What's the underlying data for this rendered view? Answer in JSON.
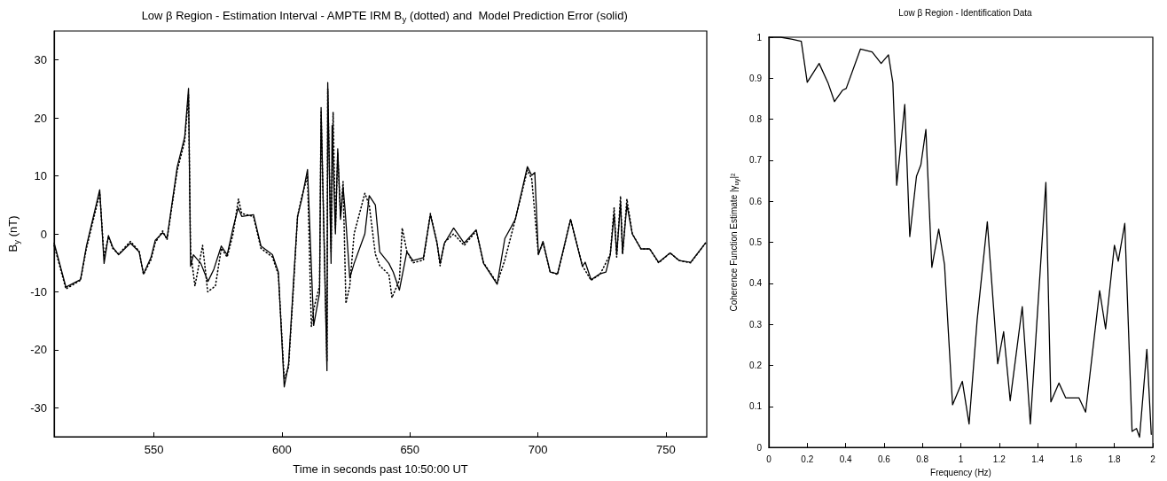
{
  "chart_data": [
    {
      "type": "line",
      "title": "Low β Region - Estimation Interval - AMPTE IRM B$_{y}$ (dotted) and  Model Prediction Error (solid)",
      "xlabel": "Time in seconds past 10:50:00 UT",
      "ylabel": "B$_{y}$ (nT)",
      "xlim": [
        511,
        766
      ],
      "xticks": [
        550,
        600,
        650,
        700,
        750
      ],
      "ylim": [
        -35,
        35
      ],
      "yticks": [
        -30,
        -20,
        -10,
        0,
        10,
        20,
        30
      ],
      "series": [
        {
          "color": "#000000",
          "line_style": "dotted",
          "x": [
            511,
            515.6,
            521.3,
            523.6,
            528.8,
            530.5,
            532.2,
            533.9,
            536.2,
            540.8,
            544.2,
            545.9,
            548.8,
            550.5,
            553.4,
            555.1,
            559.1,
            562,
            563.5,
            564.3,
            566,
            569,
            571,
            574,
            576.3,
            578.6,
            580.9,
            583,
            584.3,
            588.9,
            591.8,
            596.3,
            598.6,
            600.9,
            602.6,
            604.4,
            606.1,
            607.8,
            610,
            611.5,
            612.4,
            614.7,
            615.3,
            617.6,
            617.9,
            619.2,
            620,
            620.9,
            621.8,
            622.9,
            623.9,
            625,
            626.5,
            628.2,
            632.4,
            634.1,
            636.5,
            638.2,
            641.8,
            643,
            645.9,
            647,
            648.8,
            651.2,
            655.3,
            658,
            660.6,
            661.8,
            663.5,
            667.1,
            671.2,
            675.9,
            678.8,
            684.1,
            687.1,
            691.2,
            695.9,
            697.6,
            700.2,
            702,
            704.8,
            707.7,
            712.8,
            717.4,
            720.8,
            724.3,
            728.3,
            729.8,
            730.8,
            732.3,
            733.1,
            734.8,
            736.9,
            740.3,
            743.7,
            747.2,
            751.7,
            755.2,
            759.7,
            765.5
          ],
          "values": [
            -2,
            -9.5,
            -8,
            -2.5,
            7,
            -4,
            -0.5,
            -2.5,
            -3.5,
            -1.3,
            -3,
            -7,
            -4.5,
            -1.5,
            0.5,
            -1,
            11,
            16,
            24,
            -3,
            -9,
            -2,
            -10,
            -9,
            -2.5,
            -4,
            0,
            6,
            3.5,
            3,
            -2.5,
            -4,
            -7,
            -25,
            -23,
            -10,
            3,
            6.5,
            10,
            -16,
            -13,
            -9,
            21,
            -22,
            25,
            -3,
            21,
            1,
            14,
            3,
            9,
            -12,
            -9,
            0,
            7,
            5,
            -3.5,
            -5.5,
            -7,
            -11,
            -8,
            1,
            -3,
            -5,
            -4.5,
            3.5,
            -1.5,
            -5.5,
            -1.5,
            0,
            -2,
            0.5,
            -5,
            -8.5,
            -4.5,
            2.5,
            11,
            9.5,
            -3.5,
            -1.5,
            -6.5,
            -7,
            2.5,
            -5.5,
            -8,
            -7,
            -3.5,
            4.5,
            -4,
            6.5,
            -3.5,
            6,
            0,
            -2.6,
            -2.6,
            -5,
            -3.3,
            -4.6,
            -5,
            -1.6
          ]
        },
        {
          "color": "#000000",
          "line_style": "solid",
          "x": [
            511,
            515.6,
            521.3,
            523.6,
            528.8,
            530.5,
            532.2,
            533.9,
            536.2,
            540.8,
            544.2,
            545.9,
            548.8,
            550.5,
            553.4,
            555.1,
            559.1,
            562,
            563.5,
            564.3,
            565.4,
            568.3,
            571.1,
            573.4,
            576.3,
            578.6,
            580.9,
            582.9,
            584.3,
            588.9,
            591.8,
            596.3,
            598.6,
            600.9,
            602.6,
            604.4,
            606.1,
            607.8,
            610,
            612.4,
            614.7,
            615.3,
            617.6,
            617.9,
            619.2,
            619.6,
            620.9,
            621.8,
            622.9,
            623.9,
            624.7,
            626.5,
            628.2,
            632.4,
            634.1,
            636.5,
            638.2,
            641.8,
            643.5,
            645.9,
            648.8,
            651.2,
            655.3,
            658,
            660.6,
            661.8,
            663.5,
            667.1,
            671.2,
            675.9,
            678.8,
            684.1,
            687.1,
            691.2,
            695.9,
            697.6,
            698.8,
            700.2,
            702,
            704.8,
            707.7,
            712.8,
            717.4,
            718.5,
            720.8,
            724.3,
            726.6,
            728.3,
            729.8,
            730.8,
            732.3,
            733.1,
            734.8,
            736.9,
            740.3,
            743.7,
            747.2,
            751.7,
            755.2,
            759.7,
            765.5
          ],
          "values": [
            -1.6,
            -9.2,
            -7.9,
            -2.1,
            7.6,
            -5.1,
            -0.3,
            -2.3,
            -3.6,
            -1.6,
            -3.1,
            -6.9,
            -4.1,
            -1.1,
            0.2,
            -0.8,
            11.6,
            16.7,
            25.1,
            -5.6,
            -3.6,
            -5.1,
            -8.2,
            -6.1,
            -2.1,
            -3.6,
            1,
            4.5,
            3,
            3.3,
            -2.1,
            -3.6,
            -6.6,
            -26.4,
            -22.4,
            -9.2,
            3,
            6.1,
            11.1,
            -15.8,
            -10.2,
            21.8,
            -23.6,
            26.1,
            -5.1,
            18.7,
            0,
            14.7,
            2.5,
            8.1,
            4,
            -7.6,
            -5.1,
            0,
            6.6,
            5,
            -3.1,
            -5.1,
            -6.6,
            -9.7,
            -3.1,
            -4.6,
            -4.1,
            3.3,
            -1.6,
            -5.1,
            -1.6,
            1,
            -1.6,
            0.7,
            -5.1,
            -8.7,
            -0.8,
            2.5,
            11.6,
            10.1,
            10.6,
            -3.6,
            -1.3,
            -6.6,
            -6.9,
            2.5,
            -5.6,
            -4.9,
            -7.9,
            -6.9,
            -6.6,
            -3.6,
            3.5,
            -3.6,
            5.3,
            -3.3,
            5,
            0,
            -2.6,
            -2.6,
            -4.9,
            -3.3,
            -4.6,
            -4.9,
            -1.6
          ]
        }
      ]
    },
    {
      "type": "line",
      "title": "Low β Region - Identification Data",
      "xlabel": "Frequency (Hz)",
      "ylabel": "Coherence Function Estimate |γ$_{uy}$|²",
      "xlim": [
        0,
        2
      ],
      "xticks": [
        0,
        0.2,
        0.4,
        0.6,
        0.8,
        1,
        1.2,
        1.4,
        1.6,
        1.8,
        2
      ],
      "ylim": [
        0,
        1
      ],
      "yticks": [
        0,
        0.1,
        0.2,
        0.3,
        0.4,
        0.5,
        0.6,
        0.7,
        0.8,
        0.9,
        1
      ],
      "series": [
        {
          "color": "#000000",
          "line_style": "solid",
          "x": [
            0,
            0.062,
            0.123,
            0.169,
            0.2,
            0.262,
            0.308,
            0.342,
            0.385,
            0.403,
            0.477,
            0.538,
            0.585,
            0.623,
            0.646,
            0.666,
            0.708,
            0.734,
            0.769,
            0.792,
            0.818,
            0.849,
            0.885,
            0.915,
            0.957,
            1.008,
            1.043,
            1.085,
            1.138,
            1.192,
            1.223,
            1.257,
            1.32,
            1.362,
            1.443,
            1.469,
            1.511,
            1.546,
            1.615,
            1.65,
            1.723,
            1.754,
            1.8,
            1.82,
            1.854,
            1.892,
            1.915,
            1.931,
            1.969,
            1.992
          ],
          "values": [
            1,
            1,
            0.995,
            0.99,
            0.89,
            0.936,
            0.889,
            0.843,
            0.871,
            0.875,
            0.971,
            0.964,
            0.936,
            0.957,
            0.889,
            0.639,
            0.836,
            0.514,
            0.661,
            0.689,
            0.775,
            0.439,
            0.532,
            0.446,
            0.104,
            0.161,
            0.057,
            0.311,
            0.55,
            0.204,
            0.282,
            0.114,
            0.343,
            0.057,
            0.646,
            0.111,
            0.157,
            0.121,
            0.121,
            0.086,
            0.382,
            0.289,
            0.493,
            0.454,
            0.546,
            0.039,
            0.046,
            0.025,
            0.239,
            0.032
          ]
        }
      ]
    }
  ]
}
